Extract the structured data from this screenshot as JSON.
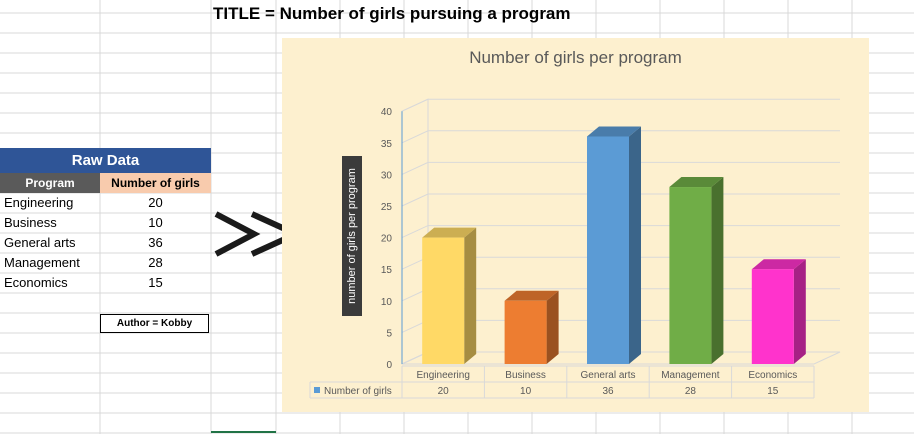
{
  "sheet_title": "TITLE = Number of girls pursuing a program",
  "raw_data": {
    "header": "Raw Data",
    "col_program": "Program",
    "col_girls": "Number of girls",
    "rows": [
      {
        "program": "Engineering",
        "girls": "20"
      },
      {
        "program": "Business",
        "girls": "10"
      },
      {
        "program": "General arts",
        "girls": "36"
      },
      {
        "program": "Management",
        "girls": "28"
      },
      {
        "program": "Economics",
        "girls": "15"
      }
    ]
  },
  "author": "Author = Kobby",
  "chart_data": {
    "type": "bar",
    "title": "Number of girls per program",
    "ylabel": "number of girls per program",
    "categories": [
      "Engineering",
      "Business",
      "General arts",
      "Management",
      "Economics"
    ],
    "series": [
      {
        "name": "Number of girls",
        "values": [
          20,
          10,
          36,
          28,
          15
        ]
      }
    ],
    "ylim": [
      0,
      40
    ],
    "yticks": [
      0,
      5,
      10,
      15,
      20,
      25,
      30,
      35,
      40
    ],
    "grid": true,
    "legend": "data-table-left",
    "bar_colors": [
      "#ffd966",
      "#ed7d31",
      "#5b9bd5",
      "#70ad47",
      "#ff33cc"
    ],
    "legend_color": "#5b9bd5"
  }
}
